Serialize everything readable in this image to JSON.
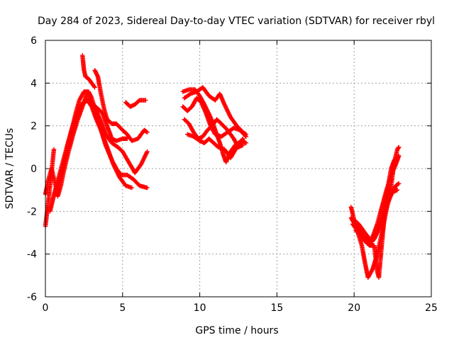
{
  "chart_data": {
    "type": "scatter",
    "title": "Day 284 of 2023, Sidereal Day-to-day VTEC variation (SDTVAR) for receiver rbyl",
    "xlabel": "GPS time / hours",
    "ylabel": "SDTVAR / TECUs",
    "xlim": [
      0,
      25
    ],
    "ylim": [
      -6,
      6
    ],
    "xticks": [
      0,
      5,
      10,
      15,
      20,
      25
    ],
    "yticks": [
      -6,
      -4,
      -2,
      0,
      2,
      4,
      6
    ],
    "grid": true,
    "marker": "+",
    "color": "#ff0000",
    "tracks": [
      [
        [
          0.0,
          -2.7
        ],
        [
          0.15,
          -1.8
        ],
        [
          0.3,
          -0.8
        ],
        [
          0.45,
          0.2
        ],
        [
          0.55,
          0.9
        ]
      ],
      [
        [
          0.0,
          -1.2
        ],
        [
          0.2,
          -0.5
        ],
        [
          0.4,
          0.0
        ],
        [
          0.6,
          -0.6
        ],
        [
          0.8,
          -1.3
        ],
        [
          1.0,
          -0.8
        ],
        [
          1.2,
          -0.1
        ],
        [
          1.5,
          0.8
        ],
        [
          1.8,
          1.6
        ],
        [
          2.1,
          2.3
        ],
        [
          2.4,
          2.9
        ],
        [
          2.7,
          3.5
        ],
        [
          2.9,
          3.4
        ]
      ],
      [
        [
          0.3,
          -2.0
        ],
        [
          0.6,
          -1.1
        ],
        [
          0.9,
          -0.3
        ],
        [
          1.2,
          0.5
        ],
        [
          1.5,
          1.3
        ],
        [
          1.8,
          2.1
        ],
        [
          2.0,
          2.7
        ],
        [
          2.2,
          3.2
        ],
        [
          2.5,
          3.6
        ],
        [
          2.8,
          3.6
        ],
        [
          3.0,
          3.3
        ],
        [
          3.3,
          2.6
        ],
        [
          3.6,
          1.8
        ],
        [
          4.0,
          1.0
        ],
        [
          4.4,
          0.2
        ],
        [
          4.8,
          -0.4
        ],
        [
          5.2,
          -0.8
        ],
        [
          5.6,
          -0.9
        ]
      ],
      [
        [
          0.9,
          -0.6
        ],
        [
          1.2,
          0.3
        ],
        [
          1.5,
          1.2
        ],
        [
          1.8,
          2.0
        ],
        [
          2.1,
          2.6
        ],
        [
          2.4,
          3.0
        ],
        [
          2.7,
          3.2
        ],
        [
          3.0,
          2.9
        ],
        [
          3.3,
          2.3
        ],
        [
          3.6,
          1.8
        ],
        [
          3.9,
          1.1
        ],
        [
          4.3,
          0.4
        ],
        [
          4.6,
          0.0
        ],
        [
          4.9,
          -0.3
        ],
        [
          5.3,
          -0.3
        ],
        [
          5.7,
          -0.5
        ],
        [
          6.1,
          -0.8
        ],
        [
          6.6,
          -0.9
        ]
      ],
      [
        [
          0.7,
          -1.2
        ],
        [
          1.0,
          -0.4
        ],
        [
          1.3,
          0.5
        ],
        [
          1.6,
          1.5
        ],
        [
          1.9,
          2.3
        ],
        [
          2.2,
          2.9
        ],
        [
          2.6,
          3.2
        ],
        [
          3.0,
          3.1
        ],
        [
          3.3,
          2.7
        ],
        [
          3.6,
          2.2
        ],
        [
          3.9,
          1.6
        ],
        [
          4.3,
          1.2
        ],
        [
          4.7,
          1.0
        ],
        [
          5.0,
          0.8
        ],
        [
          5.4,
          0.3
        ],
        [
          5.8,
          -0.2
        ],
        [
          6.2,
          0.2
        ],
        [
          6.6,
          0.8
        ]
      ],
      [
        [
          2.4,
          5.3
        ],
        [
          2.5,
          4.6
        ],
        [
          2.6,
          4.3
        ],
        [
          2.8,
          4.2
        ],
        [
          3.0,
          4.0
        ],
        [
          3.2,
          3.8
        ]
      ],
      [
        [
          3.2,
          4.6
        ],
        [
          3.4,
          4.3
        ],
        [
          3.6,
          3.5
        ],
        [
          3.8,
          2.8
        ],
        [
          4.0,
          2.3
        ],
        [
          4.3,
          2.1
        ],
        [
          4.6,
          2.1
        ],
        [
          5.0,
          1.8
        ],
        [
          5.3,
          1.6
        ],
        [
          5.6,
          1.3
        ],
        [
          6.0,
          1.4
        ],
        [
          6.4,
          1.8
        ],
        [
          6.6,
          1.7
        ]
      ],
      [
        [
          2.8,
          3.3
        ],
        [
          3.1,
          3.0
        ],
        [
          3.4,
          2.8
        ],
        [
          3.7,
          2.6
        ],
        [
          4.0,
          2.0
        ],
        [
          4.3,
          1.4
        ],
        [
          4.6,
          1.3
        ],
        [
          5.0,
          1.4
        ],
        [
          5.3,
          1.4
        ]
      ],
      [
        [
          5.2,
          3.1
        ],
        [
          5.5,
          2.9
        ],
        [
          5.8,
          3.0
        ],
        [
          6.1,
          3.2
        ],
        [
          6.5,
          3.2
        ]
      ],
      [
        [
          8.9,
          3.6
        ],
        [
          9.3,
          3.7
        ],
        [
          9.7,
          3.7
        ],
        [
          10.0,
          3.4
        ],
        [
          10.3,
          3.0
        ],
        [
          10.7,
          2.4
        ],
        [
          11.0,
          1.8
        ],
        [
          11.3,
          1.2
        ],
        [
          11.5,
          0.7
        ],
        [
          11.7,
          0.3
        ],
        [
          12.0,
          0.8
        ],
        [
          12.3,
          1.1
        ],
        [
          12.7,
          1.3
        ],
        [
          13.0,
          1.2
        ]
      ],
      [
        [
          8.9,
          2.9
        ],
        [
          9.2,
          2.7
        ],
        [
          9.5,
          2.9
        ],
        [
          9.8,
          3.3
        ],
        [
          10.1,
          3.1
        ],
        [
          10.4,
          2.6
        ],
        [
          10.7,
          2.0
        ],
        [
          11.0,
          1.6
        ],
        [
          11.4,
          1.5
        ],
        [
          11.8,
          1.7
        ],
        [
          12.2,
          1.9
        ],
        [
          12.6,
          1.8
        ],
        [
          13.0,
          1.5
        ]
      ],
      [
        [
          9.0,
          2.3
        ],
        [
          9.3,
          2.1
        ],
        [
          9.6,
          1.7
        ],
        [
          9.9,
          1.4
        ],
        [
          10.2,
          1.5
        ],
        [
          10.5,
          1.8
        ],
        [
          10.8,
          2.0
        ],
        [
          11.1,
          2.3
        ],
        [
          11.4,
          2.1
        ],
        [
          11.8,
          1.8
        ],
        [
          12.2,
          1.4
        ],
        [
          12.5,
          1.0
        ],
        [
          12.8,
          1.1
        ]
      ],
      [
        [
          9.0,
          3.3
        ],
        [
          9.4,
          3.5
        ],
        [
          9.8,
          3.6
        ],
        [
          10.2,
          3.8
        ],
        [
          10.6,
          3.4
        ],
        [
          11.0,
          3.2
        ],
        [
          11.3,
          3.5
        ],
        [
          11.6,
          3.0
        ],
        [
          12.0,
          2.4
        ],
        [
          12.4,
          2.0
        ],
        [
          12.8,
          1.7
        ],
        [
          13.0,
          1.6
        ]
      ],
      [
        [
          9.2,
          1.6
        ],
        [
          9.6,
          1.5
        ],
        [
          10.0,
          1.3
        ],
        [
          10.3,
          1.2
        ],
        [
          10.6,
          1.4
        ],
        [
          10.9,
          1.2
        ],
        [
          11.2,
          1.0
        ],
        [
          11.6,
          0.9
        ],
        [
          12.0,
          0.5
        ],
        [
          12.4,
          1.0
        ],
        [
          12.8,
          1.4
        ]
      ],
      [
        [
          19.8,
          -1.8
        ],
        [
          20.0,
          -2.4
        ],
        [
          20.3,
          -2.6
        ],
        [
          20.6,
          -2.9
        ],
        [
          20.9,
          -3.2
        ],
        [
          21.2,
          -3.4
        ],
        [
          21.5,
          -3.0
        ],
        [
          21.8,
          -2.4
        ],
        [
          22.1,
          -1.8
        ],
        [
          22.4,
          -1.2
        ],
        [
          22.7,
          -0.8
        ],
        [
          22.9,
          -0.7
        ]
      ],
      [
        [
          19.8,
          -2.3
        ],
        [
          20.1,
          -2.7
        ],
        [
          20.4,
          -2.9
        ],
        [
          20.7,
          -3.3
        ],
        [
          21.0,
          -3.5
        ],
        [
          21.3,
          -3.3
        ],
        [
          21.6,
          -2.8
        ],
        [
          21.9,
          -2.1
        ],
        [
          22.2,
          -1.5
        ],
        [
          22.5,
          -1.1
        ],
        [
          22.8,
          -1.0
        ]
      ],
      [
        [
          19.9,
          -2.6
        ],
        [
          20.2,
          -2.9
        ],
        [
          20.5,
          -3.6
        ],
        [
          20.7,
          -4.4
        ],
        [
          20.9,
          -5.1
        ],
        [
          21.2,
          -4.7
        ],
        [
          21.5,
          -4.0
        ],
        [
          21.8,
          -3.0
        ],
        [
          22.1,
          -1.9
        ],
        [
          22.4,
          -0.8
        ],
        [
          22.6,
          0.3
        ],
        [
          22.8,
          0.9
        ],
        [
          22.9,
          1.0
        ]
      ],
      [
        [
          20.1,
          -2.9
        ],
        [
          20.4,
          -3.1
        ],
        [
          20.7,
          -3.4
        ],
        [
          21.0,
          -3.6
        ],
        [
          21.3,
          -3.6
        ],
        [
          21.5,
          -4.8
        ],
        [
          21.6,
          -5.1
        ],
        [
          21.8,
          -3.5
        ],
        [
          22.0,
          -2.0
        ],
        [
          22.2,
          -0.8
        ],
        [
          22.4,
          0.0
        ],
        [
          22.6,
          0.4
        ],
        [
          22.8,
          0.5
        ]
      ],
      [
        [
          20.0,
          -2.4
        ],
        [
          20.3,
          -2.8
        ],
        [
          20.6,
          -3.0
        ],
        [
          20.9,
          -3.4
        ],
        [
          21.2,
          -3.2
        ],
        [
          21.5,
          -2.6
        ],
        [
          21.8,
          -1.8
        ],
        [
          22.1,
          -1.0
        ],
        [
          22.4,
          -0.3
        ],
        [
          22.7,
          0.2
        ],
        [
          22.9,
          0.6
        ]
      ]
    ]
  }
}
